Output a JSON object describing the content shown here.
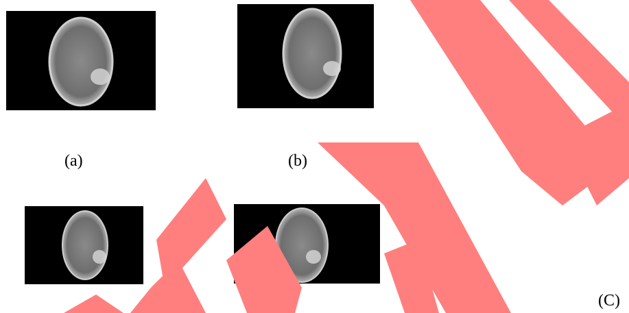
{
  "captions": {
    "a": "(a)",
    "b": "(b)",
    "c": "(C)"
  }
}
